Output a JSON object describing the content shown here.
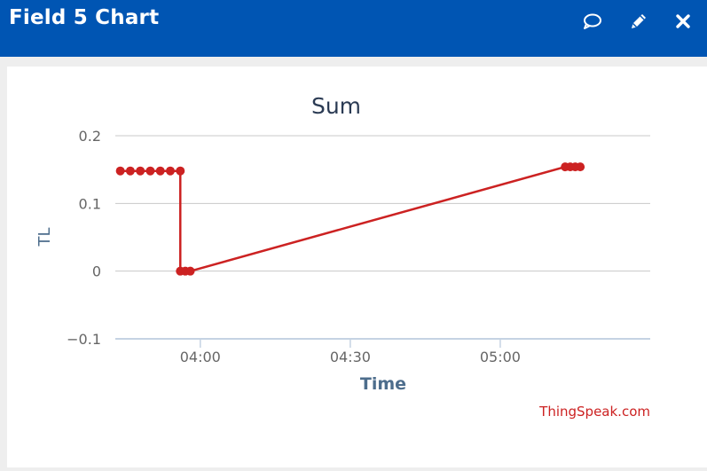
{
  "header": {
    "title": "Field 5 Chart",
    "icons": [
      "comment-icon",
      "pencil-icon",
      "close-icon"
    ],
    "background": "#0055b3"
  },
  "chart_data": {
    "type": "line",
    "title": "Sum",
    "ylabel": "TL",
    "xlabel": "Time",
    "credit": "ThingSpeak.com",
    "ylim": [
      -0.1,
      0.2
    ],
    "yticks": [
      -0.1,
      0,
      0.1,
      0.2
    ],
    "ytick_labels": [
      "−0.1",
      "0",
      "0.1",
      "0.2"
    ],
    "xlim": [
      "03:43",
      "05:30"
    ],
    "xticks": [
      "04:00",
      "04:30",
      "05:00"
    ],
    "grid": true,
    "series": [
      {
        "color": "#cc2222",
        "points": [
          {
            "x": "03:44",
            "y": 0.148
          },
          {
            "x": "03:46",
            "y": 0.148
          },
          {
            "x": "03:48",
            "y": 0.148
          },
          {
            "x": "03:50",
            "y": 0.148
          },
          {
            "x": "03:52",
            "y": 0.148
          },
          {
            "x": "03:54",
            "y": 0.148
          },
          {
            "x": "03:56",
            "y": 0.148
          },
          {
            "x": "03:56",
            "y": 0.0
          },
          {
            "x": "03:57",
            "y": 0.0
          },
          {
            "x": "03:58",
            "y": 0.0
          },
          {
            "x": "05:13",
            "y": 0.154
          },
          {
            "x": "05:14",
            "y": 0.154
          },
          {
            "x": "05:15",
            "y": 0.154
          },
          {
            "x": "05:16",
            "y": 0.154
          }
        ]
      }
    ]
  }
}
